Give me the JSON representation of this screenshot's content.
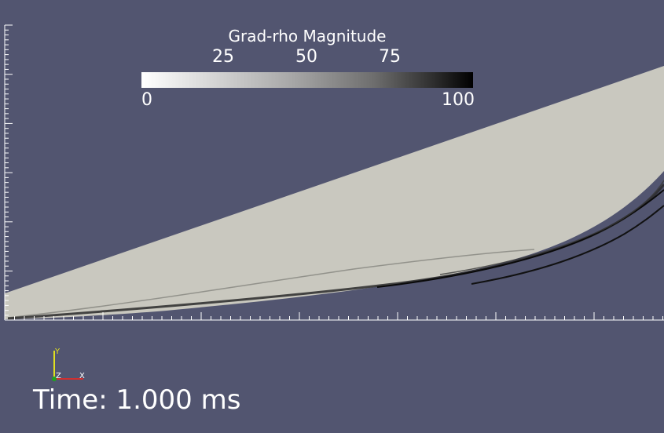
{
  "colorbar": {
    "title": "Grad-rho Magnitude",
    "tick_labels": [
      "25",
      "50",
      "75"
    ],
    "min_label": "0",
    "max_label": "100",
    "colormap": "grayscale, white to black"
  },
  "annotation": {
    "time_text": "Time: 1.000 ms"
  },
  "orientation_axes": {
    "x_label": "X",
    "y_label": "Y",
    "z_label": "Z",
    "x_color": "#d03030",
    "y_color": "#e0e020",
    "z_color": "#20a020"
  },
  "colors": {
    "background": "#525570",
    "domain_fill": "#c9c8bf",
    "shock_color": "#1a1a1a",
    "ruler_color": "#ffffff"
  }
}
